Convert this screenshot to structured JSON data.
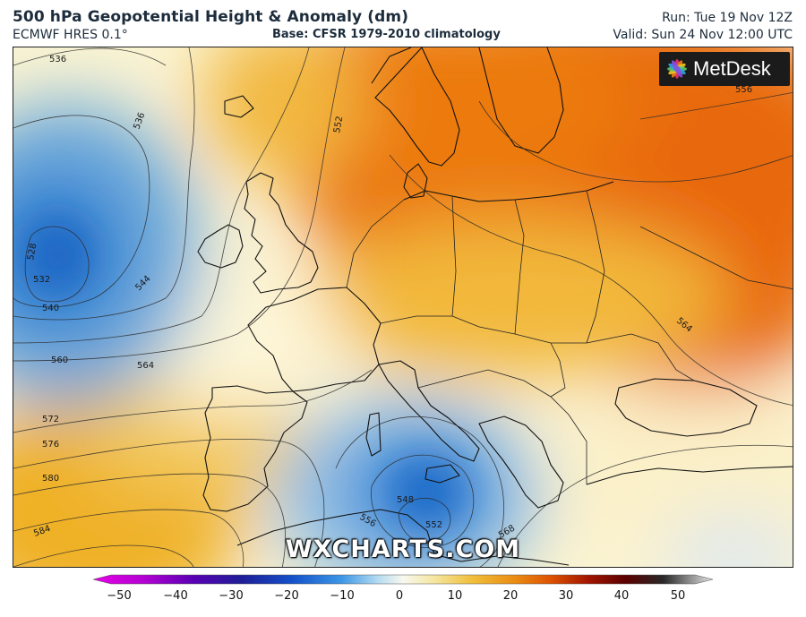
{
  "header": {
    "title": "500 hPa Geopotential Height & Anomaly (dm)",
    "model": "ECMWF HRES 0.1°",
    "base": "Base: CFSR 1979-2010 climatology",
    "run": "Run: Tue 19 Nov 12Z",
    "valid": "Valid: Sun 24 Nov 12:00 UTC"
  },
  "logo": {
    "text": "MetDesk",
    "icon": "metdesk-burst-icon"
  },
  "watermark": "WXCHARTS.COM",
  "contour_labels": [
    "536",
    "536",
    "528",
    "532",
    "540",
    "544",
    "552",
    "556",
    "560",
    "564",
    "564",
    "572",
    "576",
    "580",
    "584",
    "548",
    "552",
    "556",
    "568"
  ],
  "colorbar": {
    "ticks": [
      "−50",
      "−40",
      "−30",
      "−20",
      "−10",
      "0",
      "10",
      "20",
      "30",
      "40",
      "50"
    ],
    "colors": [
      "#e100e1",
      "#a000c8",
      "#3c00a0",
      "#0a2896",
      "#1e64c8",
      "#5aa0dc",
      "#c8e1f0",
      "#f5f5e1",
      "#f5dc82",
      "#f0b428",
      "#e8780a",
      "#d23c00",
      "#9b0a00",
      "#5a0000",
      "#1e1e1e",
      "#8c8c8c",
      "#f0f0f0"
    ]
  },
  "colors": {
    "warm_anomaly": "#e8650a",
    "cold_anomaly": "#1a6fd0",
    "neutral": "#fbf6dc"
  }
}
